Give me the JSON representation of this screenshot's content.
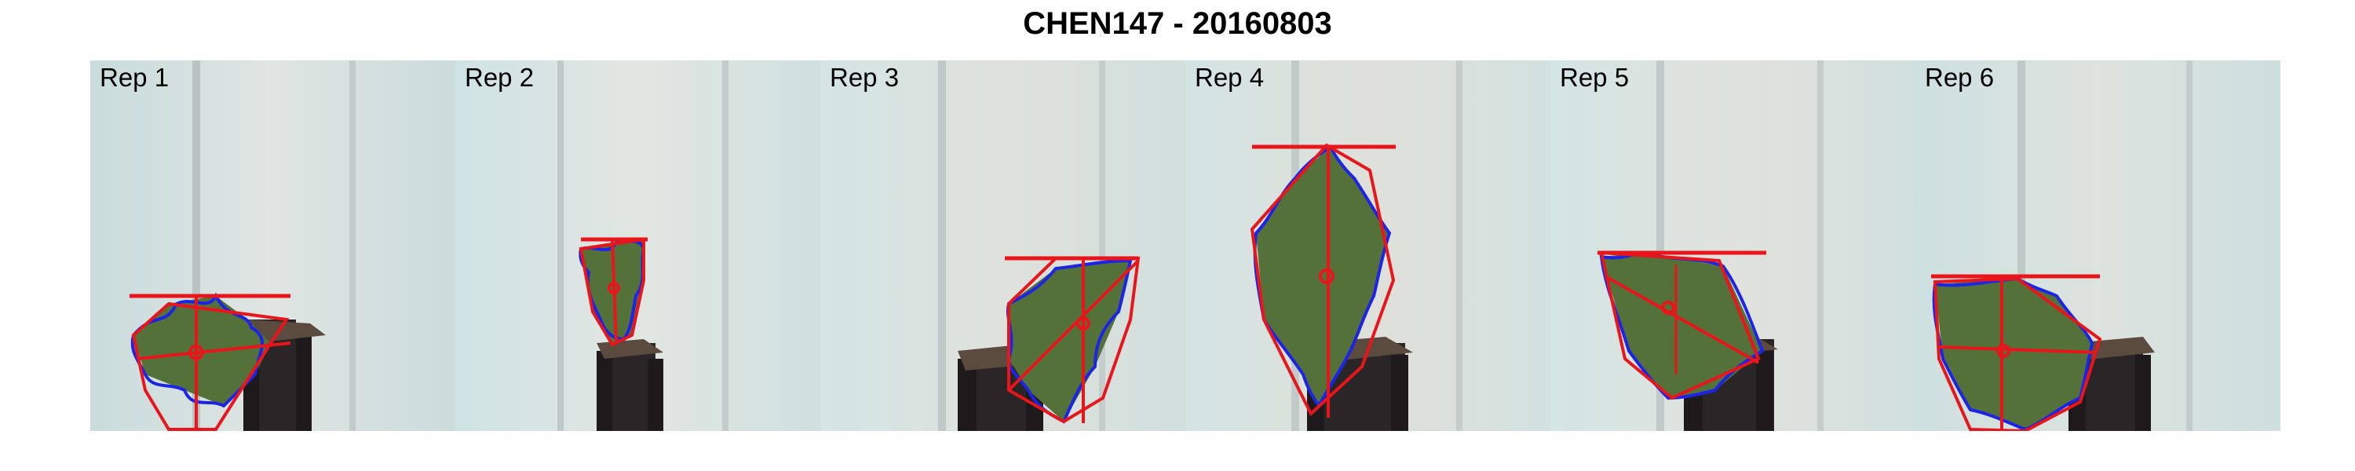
{
  "title": "CHEN147 - 20160803",
  "panels": [
    {
      "label": "Rep 1"
    },
    {
      "label": "Rep 2"
    },
    {
      "label": "Rep 3"
    },
    {
      "label": "Rep 4"
    },
    {
      "label": "Rep 5"
    },
    {
      "label": "Rep 6"
    }
  ],
  "colors": {
    "background": "#ffffff",
    "hull_and_axes": "#e8151b",
    "leaf_contour": "#1c24e6",
    "leaf_fill": "#55713a",
    "pot": "#2a2526",
    "soil": "#5b4a3e",
    "backdrop": "#d6e2df"
  }
}
